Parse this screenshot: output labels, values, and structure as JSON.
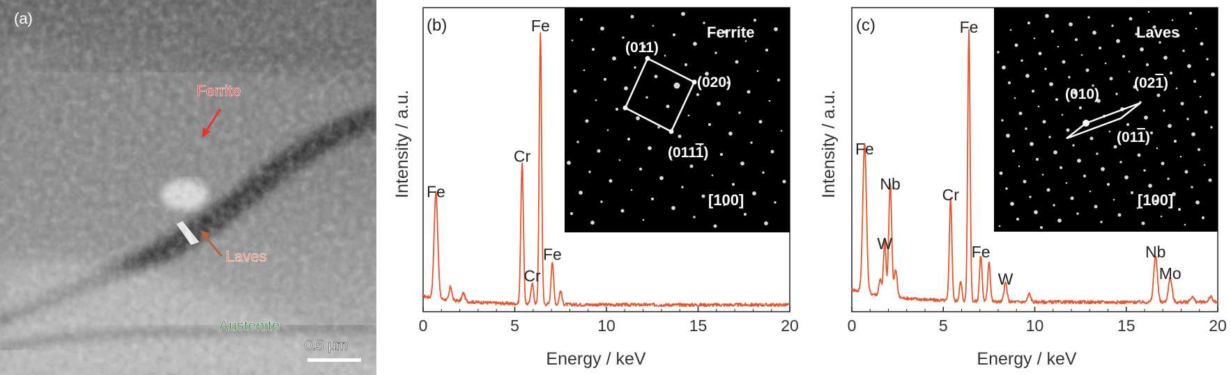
{
  "panel_a": {
    "label": "(a)",
    "scale_bar": "0.5 µm",
    "annotations": {
      "ferrite": "Ferrite",
      "laves": "Laves",
      "austenite": "Austenite"
    },
    "colors": {
      "ferrite": "#e8342a",
      "laves": "#e07a4a",
      "austenite": "#2e7d32"
    }
  },
  "chart_data": [
    {
      "type": "line",
      "panel_label": "(b)",
      "title": "",
      "xlabel": "Energy / keV",
      "ylabel": "Intensity / a.u.",
      "xlim": [
        0,
        20
      ],
      "xticks": [
        0,
        5,
        10,
        15,
        20
      ],
      "xtick_labels": [
        "0",
        "5",
        "10",
        "15",
        "20"
      ],
      "color": "#e8532b",
      "baseline": 0.02,
      "peaks": [
        {
          "x": 0.7,
          "y": 0.39,
          "w": 0.1
        },
        {
          "x": 1.5,
          "y": 0.05,
          "w": 0.07
        },
        {
          "x": 2.2,
          "y": 0.03,
          "w": 0.08
        },
        {
          "x": 5.4,
          "y": 0.52,
          "w": 0.07
        },
        {
          "x": 5.95,
          "y": 0.08,
          "w": 0.07
        },
        {
          "x": 6.4,
          "y": 1.0,
          "w": 0.065
        },
        {
          "x": 7.05,
          "y": 0.16,
          "w": 0.07
        },
        {
          "x": 7.5,
          "y": 0.05,
          "w": 0.07
        }
      ],
      "peak_labels": [
        {
          "text": "Fe",
          "x": 0.7,
          "y": 0.39
        },
        {
          "text": "Cr",
          "x": 5.4,
          "y": 0.52
        },
        {
          "text": "Fe",
          "x": 6.4,
          "y": 1.0
        },
        {
          "text": "Cr",
          "x": 5.95,
          "y": 0.08
        },
        {
          "text": "Fe",
          "x": 7.05,
          "y": 0.16
        }
      ],
      "inset": {
        "phase": "Ferrite",
        "zone_axis": "[100]",
        "indices": [
          {
            "text": "(011)",
            "bar_char": ""
          },
          {
            "text": "(020)",
            "bar_char": ""
          },
          {
            "text": "(011",
            "bar_char": "1",
            "close": ")"
          }
        ]
      }
    },
    {
      "type": "line",
      "panel_label": "(c)",
      "title": "",
      "xlabel": "Energy / keV",
      "ylabel": "Intensity / a.u.",
      "xlim": [
        0,
        20
      ],
      "xticks": [
        0,
        5,
        10,
        15,
        20
      ],
      "xtick_labels": [
        "0",
        "5",
        "10",
        "15",
        "20"
      ],
      "color": "#e8532b",
      "baseline": 0.03,
      "peaks": [
        {
          "x": 0.7,
          "y": 0.55,
          "w": 0.1
        },
        {
          "x": 1.55,
          "y": 0.06,
          "w": 0.07
        },
        {
          "x": 1.8,
          "y": 0.2,
          "w": 0.07
        },
        {
          "x": 2.1,
          "y": 0.42,
          "w": 0.08
        },
        {
          "x": 2.4,
          "y": 0.1,
          "w": 0.08
        },
        {
          "x": 5.4,
          "y": 0.38,
          "w": 0.07
        },
        {
          "x": 5.95,
          "y": 0.07,
          "w": 0.07
        },
        {
          "x": 6.4,
          "y": 1.0,
          "w": 0.065
        },
        {
          "x": 7.05,
          "y": 0.17,
          "w": 0.07
        },
        {
          "x": 7.5,
          "y": 0.15,
          "w": 0.07
        },
        {
          "x": 8.4,
          "y": 0.07,
          "w": 0.08
        },
        {
          "x": 9.7,
          "y": 0.03,
          "w": 0.08
        },
        {
          "x": 16.6,
          "y": 0.17,
          "w": 0.1
        },
        {
          "x": 17.4,
          "y": 0.09,
          "w": 0.1
        },
        {
          "x": 18.6,
          "y": 0.02,
          "w": 0.1
        },
        {
          "x": 19.6,
          "y": 0.02,
          "w": 0.1
        }
      ],
      "peak_labels": [
        {
          "text": "Fe",
          "x": 0.7,
          "y": 0.55
        },
        {
          "text": "W",
          "x": 1.8,
          "y": 0.2
        },
        {
          "text": "Nb",
          "x": 2.1,
          "y": 0.42
        },
        {
          "text": "Cr",
          "x": 5.4,
          "y": 0.38
        },
        {
          "text": "Fe",
          "x": 6.4,
          "y": 1.0
        },
        {
          "text": "Fe",
          "x": 7.05,
          "y": 0.17
        },
        {
          "text": "W",
          "x": 8.4,
          "y": 0.07
        },
        {
          "text": "Nb",
          "x": 16.6,
          "y": 0.17
        },
        {
          "text": "Mo",
          "x": 17.4,
          "y": 0.09
        }
      ],
      "inset": {
        "phase": "Laves",
        "zone_axis": "[100]",
        "indices": [
          {
            "text": "(010)",
            "bar_char": ""
          },
          {
            "text": "(02",
            "bar_char": "1",
            "close": ")"
          },
          {
            "text": "(01",
            "bar_char": "1",
            "close": ")"
          }
        ]
      }
    }
  ]
}
